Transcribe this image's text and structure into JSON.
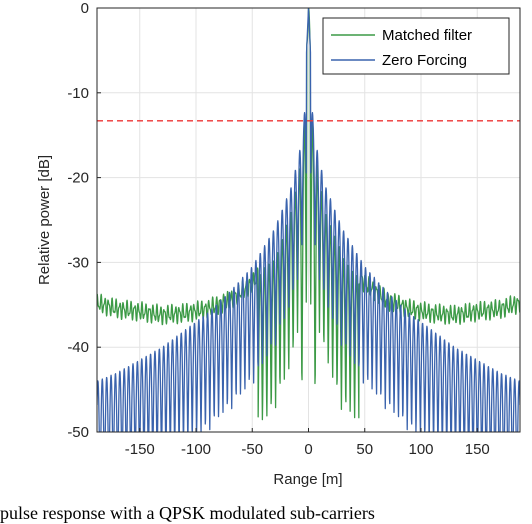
{
  "caption": "pulse response with a QPSK modulated sub-carriers",
  "colors": {
    "matched": "#3c9a46",
    "zero_forcing": "#3a63ad",
    "threshold": "#ee3434",
    "grid": "#e3e3e3",
    "axis": "#262626"
  },
  "chart_data": {
    "type": "line",
    "title": "",
    "xlabel": "Range [m]",
    "ylabel": "Relative power [dB]",
    "xlim": [
      -188,
      188
    ],
    "ylim": [
      -50,
      0
    ],
    "xticks": [
      -150,
      -100,
      -50,
      0,
      50,
      100,
      150
    ],
    "xtick_labels": [
      "-150",
      "-100",
      "-50",
      "0",
      "50",
      "100",
      "150"
    ],
    "yticks": [
      0,
      -10,
      -20,
      -30,
      -40,
      -50
    ],
    "ytick_labels": [
      "0",
      "-10",
      "-20",
      "-30",
      "-40",
      "-50"
    ],
    "grid": true,
    "legend_position": "top-right",
    "threshold_line": {
      "y": -13.3,
      "style": "dashed"
    },
    "series": [
      {
        "name": "Matched filter",
        "x": [
          -188,
          -170,
          -150,
          -130,
          -110,
          -90,
          -70,
          -50,
          -30,
          -15,
          -8,
          -4,
          -2,
          0,
          2,
          4,
          8,
          15,
          30,
          50,
          70,
          90,
          110,
          130,
          150,
          170,
          188
        ],
        "values": [
          -34.8,
          -35.5,
          -35.8,
          -36.2,
          -36.0,
          -35.5,
          -34.5,
          -32.5,
          -29.5,
          -24.0,
          -19.0,
          -14.5,
          -6.0,
          0,
          -6.0,
          -14.5,
          -19.0,
          -24.0,
          -29.5,
          -32.5,
          -34.5,
          -35.5,
          -36.0,
          -36.2,
          -35.8,
          -35.5,
          -34.8
        ]
      },
      {
        "name": "Zero Forcing",
        "x": [
          -188,
          -170,
          -150,
          -130,
          -110,
          -90,
          -70,
          -50,
          -30,
          -15,
          -8,
          -4,
          -2,
          0,
          2,
          4,
          8,
          15,
          30,
          50,
          70,
          90,
          110,
          130,
          150,
          170,
          188
        ],
        "values": [
          -44.0,
          -43.0,
          -41.5,
          -40.0,
          -38.0,
          -36.0,
          -33.5,
          -30.5,
          -26.0,
          -21.0,
          -17.0,
          -13.5,
          -6.0,
          0,
          -6.0,
          -13.5,
          -17.0,
          -21.0,
          -26.0,
          -30.5,
          -33.5,
          -36.0,
          -38.0,
          -40.0,
          -41.5,
          -43.0,
          -44.0
        ]
      }
    ]
  }
}
